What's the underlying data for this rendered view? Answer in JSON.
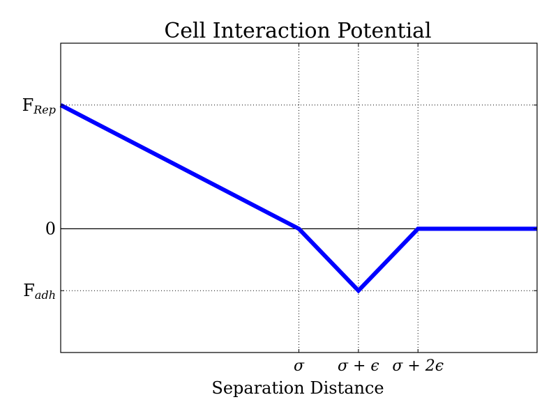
{
  "chart_data": {
    "type": "line",
    "title": "Cell Interaction Potential",
    "xlabel": "Separation Distance",
    "ylabel": "",
    "color": "#0000ff",
    "grid": true,
    "xlim": [
      0,
      4
    ],
    "ylim": [
      -2,
      3
    ],
    "x_ticks": [
      {
        "value": 2,
        "main": "σ",
        "sub": ""
      },
      {
        "value": 2.5,
        "main": "σ + ϵ",
        "sub": ""
      },
      {
        "value": 3,
        "main": "σ + 2ϵ",
        "sub": ""
      }
    ],
    "y_ticks": [
      {
        "value": 2,
        "main": "F",
        "sub": "Rep"
      },
      {
        "value": 0,
        "main": "0",
        "sub": ""
      },
      {
        "value": -1,
        "main": "F",
        "sub": "adh"
      }
    ],
    "series": [
      {
        "x": [
          0,
          2,
          2.5,
          3,
          4
        ],
        "y": [
          2,
          0,
          -1,
          0,
          0
        ]
      }
    ]
  }
}
